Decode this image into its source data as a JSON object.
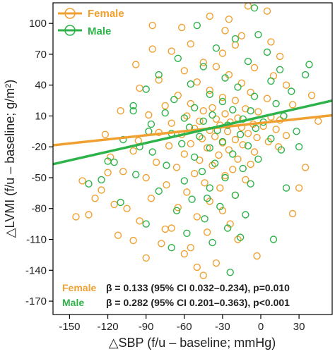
{
  "chart_data": {
    "type": "scatter",
    "xlabel": "△SBP (f/u – baseline; mmHg)",
    "ylabel": "△LVMI (f/u – baseline; g/m²)",
    "xlim": [
      -163,
      56
    ],
    "ylim": [
      -183,
      120
    ],
    "x_ticks": [
      "-150",
      "-120",
      "-90",
      "-60",
      "-30",
      "0",
      "30"
    ],
    "x_tick_values": [
      -150,
      -120,
      -90,
      -60,
      -30,
      0,
      30
    ],
    "y_ticks": [
      "100",
      "70",
      "40",
      "10",
      "-20",
      "-50",
      "-80",
      "-110",
      "-140",
      "-170"
    ],
    "y_tick_values": [
      100,
      70,
      40,
      10,
      -20,
      -50,
      -80,
      -110,
      -140,
      -170
    ],
    "grid": false,
    "legend_position": "top-left",
    "colors": {
      "Female": "#f0a030",
      "Male": "#2db34a"
    },
    "series": [
      {
        "name": "Female",
        "color": "#f0a030",
        "regression": {
          "slope": 0.133,
          "intercept": 3.2
        },
        "annotation": {
          "label": "Female",
          "text": "β = 0.133 (95% CI 0.032–0.234), p=0.010"
        },
        "points": [
          [
            -10,
            117
          ],
          [
            -40,
            107
          ],
          [
            -85,
            98
          ],
          [
            -28,
            93
          ],
          [
            5,
            112
          ],
          [
            -55,
            80
          ],
          [
            -20,
            79
          ],
          [
            -70,
            73
          ],
          [
            -30,
            71
          ],
          [
            15,
            68
          ],
          [
            -45,
            62
          ],
          [
            -35,
            58
          ],
          [
            -5,
            57
          ],
          [
            -60,
            54
          ],
          [
            -25,
            50
          ],
          [
            10,
            49
          ],
          [
            -80,
            45
          ],
          [
            -50,
            43
          ],
          [
            -15,
            42
          ],
          [
            20,
            40
          ],
          [
            -95,
            37
          ],
          [
            -40,
            35
          ],
          [
            -8,
            33
          ],
          [
            -65,
            30
          ],
          [
            -30,
            28
          ],
          [
            5,
            27
          ],
          [
            -20,
            25
          ],
          [
            -55,
            22
          ],
          [
            25,
            21
          ],
          [
            -75,
            20
          ],
          [
            -38,
            18
          ],
          [
            -12,
            17
          ],
          [
            -45,
            15
          ],
          [
            -2,
            14
          ],
          [
            -28,
            12
          ],
          [
            -88,
            11
          ],
          [
            -58,
            10
          ],
          [
            8,
            9
          ],
          [
            -18,
            8
          ],
          [
            -35,
            7
          ],
          [
            15,
            6
          ],
          [
            -48,
            5
          ],
          [
            -24,
            4
          ],
          [
            -70,
            3
          ],
          [
            -6,
            2
          ],
          [
            -32,
            1
          ],
          [
            2,
            0
          ],
          [
            -15,
            -1
          ],
          [
            -52,
            -2
          ],
          [
            12,
            -3
          ],
          [
            -40,
            -4
          ],
          [
            -26,
            -5
          ],
          [
            -80,
            -6
          ],
          [
            -10,
            -7
          ],
          [
            -62,
            -8
          ],
          [
            20,
            -9
          ],
          [
            -36,
            -10
          ],
          [
            -3,
            -11
          ],
          [
            -46,
            -12
          ],
          [
            -20,
            -13
          ],
          [
            -96,
            -14
          ],
          [
            6,
            -15
          ],
          [
            -30,
            -16
          ],
          [
            -55,
            -17
          ],
          [
            -14,
            -18
          ],
          [
            -72,
            -19
          ],
          [
            14,
            -20
          ],
          [
            -42,
            -21
          ],
          [
            -25,
            -23
          ],
          [
            -100,
            -24
          ],
          [
            -5,
            -25
          ],
          [
            -60,
            -27
          ],
          [
            -33,
            -28
          ],
          [
            -118,
            -30
          ],
          [
            -18,
            -32
          ],
          [
            -48,
            -33
          ],
          [
            -82,
            -35
          ],
          [
            -8,
            -37
          ],
          [
            -38,
            -38
          ],
          [
            -66,
            -40
          ],
          [
            -22,
            -42
          ],
          [
            -108,
            -44
          ],
          [
            -52,
            -46
          ],
          [
            -28,
            -48
          ],
          [
            -90,
            -50
          ],
          [
            -12,
            -52
          ],
          [
            -44,
            -55
          ],
          [
            -74,
            -57
          ],
          [
            -32,
            -60
          ],
          [
            -125,
            -62
          ],
          [
            -58,
            -64
          ],
          [
            -20,
            -67
          ],
          [
            -86,
            -70
          ],
          [
            -40,
            -73
          ],
          [
            -115,
            -76
          ],
          [
            -65,
            -79
          ],
          [
            -30,
            -82
          ],
          [
            -135,
            -86
          ],
          [
            -50,
            -88
          ],
          [
            -95,
            -92
          ],
          [
            -24,
            -95
          ],
          [
            -70,
            -99
          ],
          [
            -42,
            -103
          ],
          [
            -112,
            -106
          ],
          [
            -18,
            -110
          ],
          [
            -78,
            -114
          ],
          [
            -55,
            -118
          ],
          [
            -90,
            -128
          ],
          [
            -35,
            -133
          ],
          [
            -45,
            -145
          ],
          [
            -60,
            -124
          ],
          [
            -3,
            -126
          ],
          [
            -100,
            -111
          ],
          [
            40,
            30
          ],
          [
            45,
            5
          ],
          [
            35,
            -40
          ],
          [
            30,
            -60
          ],
          [
            25,
            -85
          ],
          [
            -130,
            -70
          ],
          [
            -140,
            -53
          ],
          [
            -145,
            -88
          ],
          [
            -120,
            -45
          ],
          [
            -105,
            -80
          ],
          [
            -110,
            15
          ],
          [
            -122,
            -8
          ],
          [
            -98,
            60
          ],
          [
            -85,
            75
          ],
          [
            -75,
            -100
          ],
          [
            -15,
            88
          ],
          [
            8,
            82
          ],
          [
            -62,
            96
          ],
          [
            -25,
            104
          ],
          [
            -50,
            -137
          ]
        ]
      },
      {
        "name": "Male",
        "color": "#2db34a",
        "regression": {
          "slope": 0.282,
          "intercept": 9.1
        },
        "annotation": {
          "label": "Male",
          "text": "β = 0.282 (95% CI 0.201–0.363), p<0.001"
        },
        "points": [
          [
            -50,
            98
          ],
          [
            -2,
            89
          ],
          [
            -20,
            85
          ],
          [
            -35,
            76
          ],
          [
            5,
            72
          ],
          [
            -65,
            66
          ],
          [
            -10,
            63
          ],
          [
            -45,
            58
          ],
          [
            15,
            55
          ],
          [
            -80,
            50
          ],
          [
            -28,
            47
          ],
          [
            8,
            44
          ],
          [
            -55,
            41
          ],
          [
            -18,
            38
          ],
          [
            -90,
            36
          ],
          [
            24,
            34
          ],
          [
            -40,
            31
          ],
          [
            -5,
            29
          ],
          [
            -68,
            26
          ],
          [
            -30,
            24
          ],
          [
            12,
            22
          ],
          [
            -100,
            20
          ],
          [
            -52,
            18
          ],
          [
            -22,
            16
          ],
          [
            -8,
            15
          ],
          [
            -75,
            13
          ],
          [
            -38,
            11
          ],
          [
            18,
            10
          ],
          [
            -60,
            8
          ],
          [
            -14,
            7
          ],
          [
            -45,
            5
          ],
          [
            2,
            4
          ],
          [
            -86,
            2
          ],
          [
            -26,
            1
          ],
          [
            -56,
            -1
          ],
          [
            -4,
            -2
          ],
          [
            -34,
            -4
          ],
          [
            28,
            -5
          ],
          [
            -70,
            -7
          ],
          [
            -16,
            -8
          ],
          [
            -48,
            -10
          ],
          [
            8,
            -12
          ],
          [
            -108,
            -13
          ],
          [
            -30,
            -15
          ],
          [
            -62,
            -17
          ],
          [
            -10,
            -19
          ],
          [
            -40,
            -21
          ],
          [
            16,
            -23
          ],
          [
            -85,
            -25
          ],
          [
            -22,
            -27
          ],
          [
            -52,
            -30
          ],
          [
            -2,
            -32
          ],
          [
            -120,
            -34
          ],
          [
            -36,
            -36
          ],
          [
            -74,
            -38
          ],
          [
            -14,
            -41
          ],
          [
            -46,
            -44
          ],
          [
            -98,
            -47
          ],
          [
            -28,
            -50
          ],
          [
            -60,
            -53
          ],
          [
            -8,
            -56
          ],
          [
            -135,
            -56
          ],
          [
            -40,
            -60
          ],
          [
            -80,
            -63
          ],
          [
            -20,
            -67
          ],
          [
            -54,
            -71
          ],
          [
            -110,
            -74
          ],
          [
            -32,
            -78
          ],
          [
            -66,
            -82
          ],
          [
            -12,
            -86
          ],
          [
            -44,
            -90
          ],
          [
            -90,
            -95
          ],
          [
            -26,
            -99
          ],
          [
            -58,
            -104
          ],
          [
            -16,
            -108
          ],
          [
            -38,
            -113
          ],
          [
            -70,
            -118
          ],
          [
            -24,
            -142
          ],
          [
            10,
            -110
          ],
          [
            38,
            60
          ],
          [
            35,
            50
          ],
          [
            30,
            -20
          ],
          [
            20,
            -60
          ],
          [
            -125,
            -52
          ],
          [
            -115,
            -35
          ],
          [
            -95,
            -20
          ],
          [
            -100,
            15
          ],
          [
            -88,
            -5
          ],
          [
            -5,
            115
          ],
          [
            -42,
            -70
          ]
        ]
      }
    ]
  }
}
